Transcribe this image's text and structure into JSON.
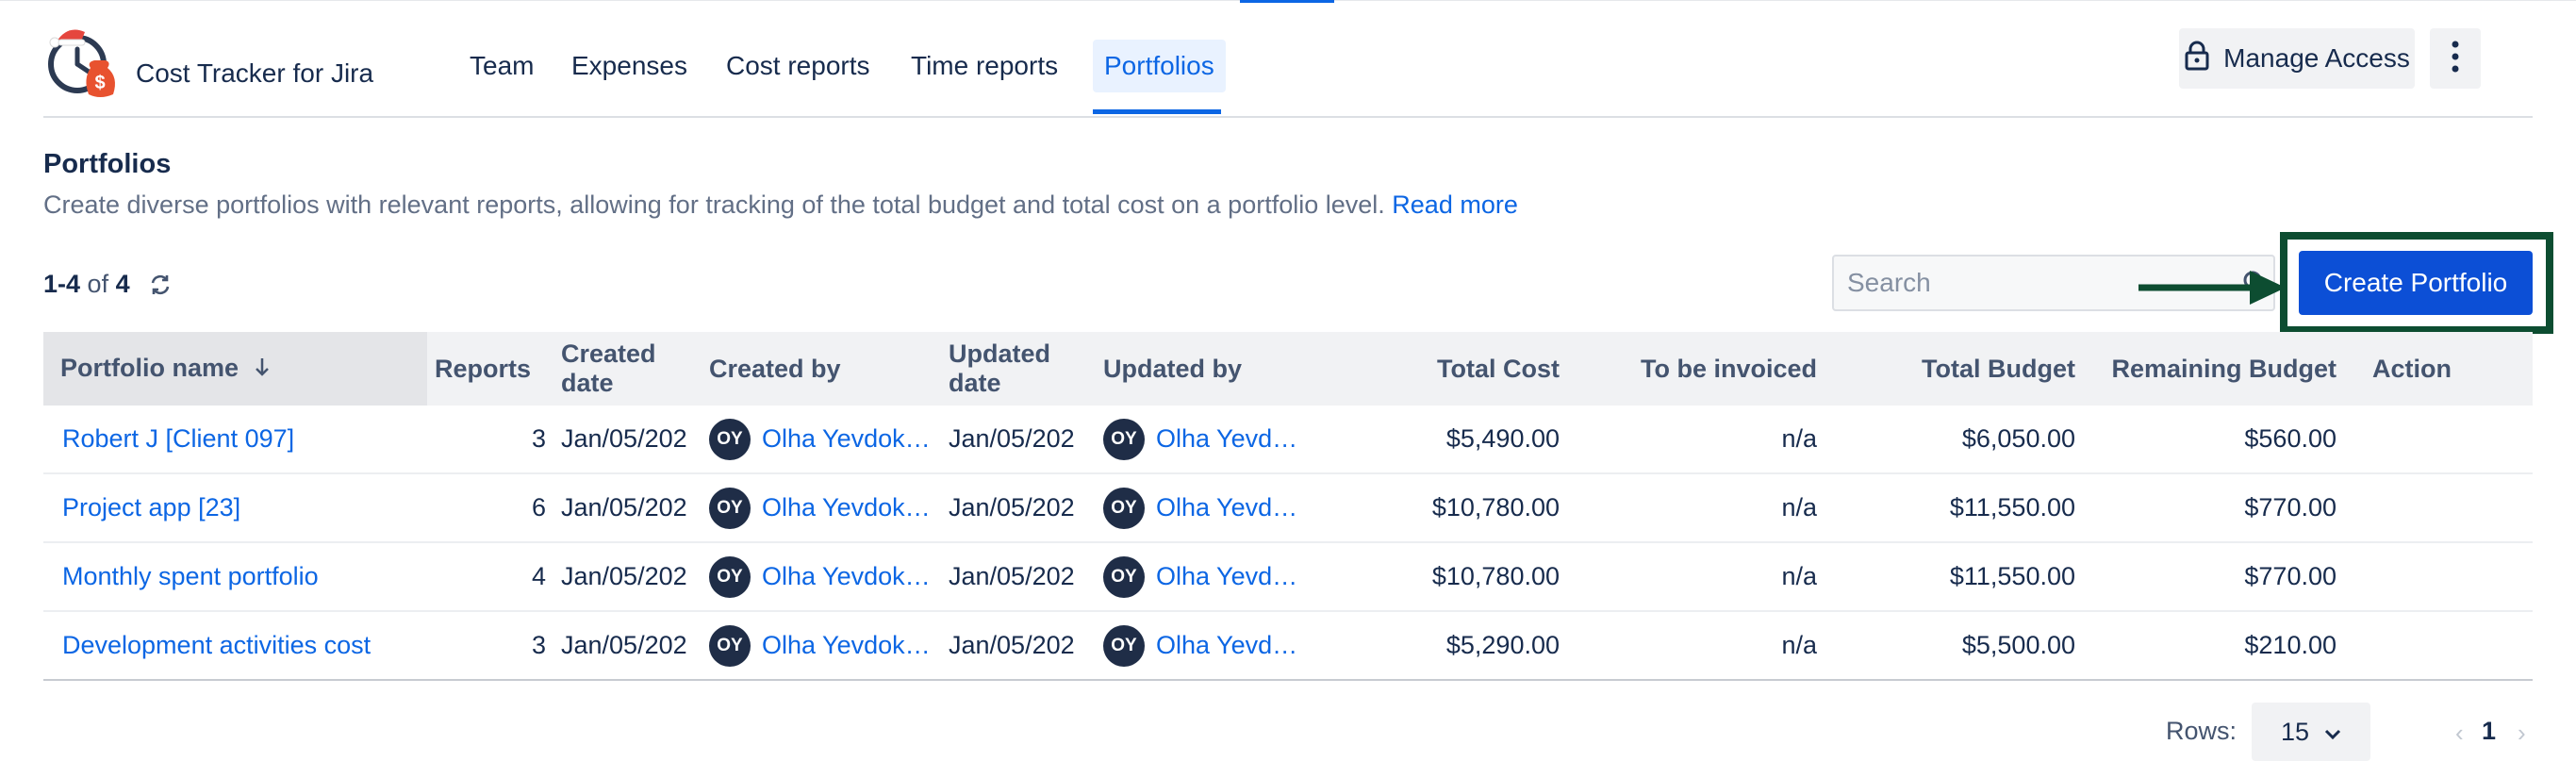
{
  "app": {
    "name": "Cost Tracker for Jira"
  },
  "nav": {
    "items": [
      {
        "label": "Team",
        "active": false
      },
      {
        "label": "Expenses",
        "active": false
      },
      {
        "label": "Cost reports",
        "active": false
      },
      {
        "label": "Time reports",
        "active": false
      },
      {
        "label": "Portfolios",
        "active": true
      }
    ],
    "manage_access": "Manage Access"
  },
  "page": {
    "title": "Portfolios",
    "description": "Create diverse portfolios with relevant reports, allowing for tracking of the total budget and total cost on a portfolio level.",
    "read_more": "Read more"
  },
  "toolbar": {
    "range": "1-4",
    "of": "of",
    "total": "4",
    "search_placeholder": "Search",
    "create_button": "Create Portfolio"
  },
  "table": {
    "columns": {
      "name": "Portfolio name",
      "reports": "Reports",
      "created_date": "Created date",
      "created_by": "Created by",
      "updated_date": "Updated date",
      "updated_by": "Updated by",
      "total_cost": "Total Cost",
      "to_be_invoiced": "To be invoiced",
      "total_budget": "Total Budget",
      "remaining_budget": "Remaining Budget",
      "action": "Action"
    },
    "rows": [
      {
        "name": "Robert J [Client 097]",
        "reports": "3",
        "created_date": "Jan/05/202",
        "created_initials": "OY",
        "created_by": "Olha Yevdok…",
        "updated_date": "Jan/05/202",
        "updated_initials": "OY",
        "updated_by": "Olha Yevdok…",
        "total_cost": "$5,490.00",
        "to_be_invoiced": "n/a",
        "total_budget": "$6,050.00",
        "remaining_budget": "$560.00"
      },
      {
        "name": "Project app [23]",
        "reports": "6",
        "created_date": "Jan/05/202",
        "created_initials": "OY",
        "created_by": "Olha Yevdok…",
        "updated_date": "Jan/05/202",
        "updated_initials": "OY",
        "updated_by": "Olha Yevdok…",
        "total_cost": "$10,780.00",
        "to_be_invoiced": "n/a",
        "total_budget": "$11,550.00",
        "remaining_budget": "$770.00"
      },
      {
        "name": "Monthly spent portfolio",
        "reports": "4",
        "created_date": "Jan/05/202",
        "created_initials": "OY",
        "created_by": "Olha Yevdok…",
        "updated_date": "Jan/05/202",
        "updated_initials": "OY",
        "updated_by": "Olha Yevdok…",
        "total_cost": "$10,780.00",
        "to_be_invoiced": "n/a",
        "total_budget": "$11,550.00",
        "remaining_budget": "$770.00"
      },
      {
        "name": "Development activities cost",
        "reports": "3",
        "created_date": "Jan/05/202",
        "created_initials": "OY",
        "created_by": "Olha Yevdok…",
        "updated_date": "Jan/05/202",
        "updated_initials": "OY",
        "updated_by": "Olha Yevdok…",
        "total_cost": "$5,290.00",
        "to_be_invoiced": "n/a",
        "total_budget": "$5,500.00",
        "remaining_budget": "$210.00"
      }
    ]
  },
  "pagination": {
    "rows_label": "Rows:",
    "rows_value": "15",
    "current_page": "1"
  },
  "colors": {
    "accent": "#0c66e4",
    "primary_button": "#0c4fd6",
    "annotation": "#0d4d31",
    "avatar": "#1f2d47"
  },
  "icons": {
    "logo": "stopwatch-money-bag-logo",
    "manage_access": "lock-icon",
    "more": "more-vertical-icon",
    "refresh": "refresh-icon",
    "search": "search-icon",
    "sort": "arrow-down-icon",
    "annotation": "arrow-right-icon"
  }
}
